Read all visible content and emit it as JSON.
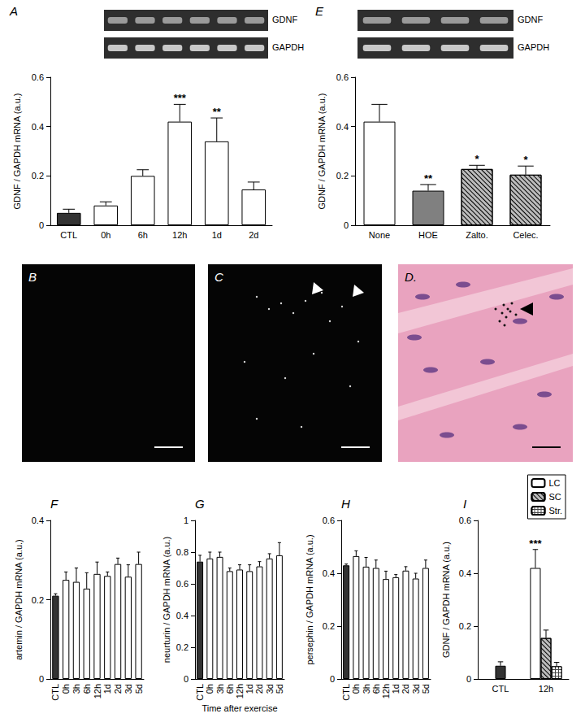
{
  "chart_data": [
    {
      "type": "bar",
      "title": "A",
      "categories": [
        "CTL",
        "0h",
        "6h",
        "12h",
        "1d",
        "2d"
      ],
      "values": [
        0.05,
        0.08,
        0.2,
        0.42,
        0.34,
        0.145
      ],
      "errors": [
        0.015,
        0.015,
        0.025,
        0.07,
        0.095,
        0.03
      ],
      "colors": [
        "#333333",
        "#ffffff",
        "#ffffff",
        "#ffffff",
        "#ffffff",
        "#ffffff"
      ],
      "ylabel": "GDNF / GAPDH mRNA (a.u.)",
      "ylim": [
        0,
        0.6
      ],
      "yticks": [
        0,
        0.2,
        0.4,
        0.6
      ],
      "annotations": [
        {
          "category": "12h",
          "text": "***"
        },
        {
          "category": "1d",
          "text": "**"
        }
      ],
      "gel_labels": [
        "GDNF",
        "GAPDH"
      ],
      "grid": false
    },
    {
      "type": "bar",
      "title": "E",
      "categories": [
        "None",
        "HOE",
        "Zalto.",
        "Celec."
      ],
      "values": [
        0.42,
        0.14,
        0.228,
        0.205
      ],
      "errors": [
        0.07,
        0.025,
        0.015,
        0.035
      ],
      "colors": [
        "#ffffff",
        "#808080",
        "#bbbbbb",
        "#bbbbbb"
      ],
      "ylabel": "GDNF / GAPDH mRNA (a.u.)",
      "ylim": [
        0,
        0.6
      ],
      "yticks": [
        0,
        0.2,
        0.4,
        0.6
      ],
      "annotations": [
        {
          "category": "HOE",
          "text": "**"
        },
        {
          "category": "Zalto.",
          "text": "*"
        },
        {
          "category": "Celec.",
          "text": "*"
        }
      ],
      "gel_labels": [
        "GDNF",
        "GAPDH"
      ],
      "grid": false
    },
    {
      "type": "bar",
      "title": "F",
      "categories": [
        "CTL",
        "0h",
        "3h",
        "6h",
        "12h",
        "1d",
        "2d",
        "3d",
        "5d"
      ],
      "values": [
        0.21,
        0.25,
        0.245,
        0.228,
        0.265,
        0.26,
        0.29,
        0.258,
        0.29
      ],
      "errors": [
        0.005,
        0.02,
        0.035,
        0.04,
        0.03,
        0.01,
        0.015,
        0.03,
        0.03
      ],
      "colors": [
        "#333333",
        "#ffffff",
        "#ffffff",
        "#ffffff",
        "#ffffff",
        "#ffffff",
        "#ffffff",
        "#ffffff",
        "#ffffff"
      ],
      "ylabel": "artemin / GAPDH mRNA (a.u.)",
      "ylim": [
        0,
        0.4
      ],
      "yticks": [
        0,
        0.2,
        0.4
      ],
      "grid": false
    },
    {
      "type": "bar",
      "title": "G",
      "categories": [
        "CTL",
        "0h",
        "3h",
        "6h",
        "12h",
        "1d",
        "2d",
        "3d",
        "5d"
      ],
      "values": [
        0.74,
        0.76,
        0.77,
        0.68,
        0.69,
        0.68,
        0.71,
        0.76,
        0.78
      ],
      "errors": [
        0.04,
        0.04,
        0.03,
        0.02,
        0.03,
        0.04,
        0.03,
        0.03,
        0.08
      ],
      "colors": [
        "#333333",
        "#ffffff",
        "#ffffff",
        "#ffffff",
        "#ffffff",
        "#ffffff",
        "#ffffff",
        "#ffffff",
        "#ffffff"
      ],
      "ylabel": "neurturin / GAPDH mRNA (a.u.)",
      "xlabel": "Time after exercise",
      "ylim": [
        0,
        1
      ],
      "yticks": [
        0,
        0.2,
        0.4,
        0.6,
        0.8,
        1
      ],
      "grid": false
    },
    {
      "type": "bar",
      "title": "H",
      "categories": [
        "CTL",
        "0h",
        "3h",
        "6h",
        "12h",
        "1d",
        "2d",
        "3d",
        "5d"
      ],
      "values": [
        0.43,
        0.465,
        0.425,
        0.42,
        0.378,
        0.385,
        0.41,
        0.38,
        0.42
      ],
      "errors": [
        0.005,
        0.02,
        0.035,
        0.03,
        0.03,
        0.01,
        0.015,
        0.02,
        0.03
      ],
      "colors": [
        "#333333",
        "#ffffff",
        "#ffffff",
        "#ffffff",
        "#ffffff",
        "#ffffff",
        "#ffffff",
        "#ffffff",
        "#ffffff"
      ],
      "ylabel": "persephin / GAPDH mRNA (a.u.)",
      "ylim": [
        0,
        0.6
      ],
      "yticks": [
        0,
        0.2,
        0.4,
        0.6
      ],
      "grid": false
    },
    {
      "type": "bar",
      "title": "I",
      "categories": [
        "CTL",
        "12h"
      ],
      "series": [
        {
          "color": "#333333",
          "values": [
            0.05,
            null
          ],
          "errors": [
            0.015,
            null
          ]
        },
        {
          "name": "LC",
          "color": "#ffffff",
          "values": [
            null,
            0.42
          ],
          "errors": [
            null,
            0.07
          ]
        },
        {
          "name": "SC",
          "color": "#bbbbbb",
          "values": [
            null,
            0.155
          ],
          "errors": [
            null,
            0.03
          ]
        },
        {
          "name": "Str.",
          "color": "#444444",
          "values": [
            null,
            0.048
          ],
          "errors": [
            null,
            0.015
          ]
        }
      ],
      "ylabel": "GDNF / GAPDH mRNA (a.u.)",
      "ylim": [
        0,
        0.6
      ],
      "yticks": [
        0,
        0.2,
        0.4,
        0.6
      ],
      "annotations": [
        {
          "category": "12h",
          "series": "LC",
          "text": "***"
        }
      ],
      "legend": "top-right",
      "grid": false
    }
  ],
  "micrographs": [
    {
      "title": "B"
    },
    {
      "title": "C"
    },
    {
      "title": "D."
    }
  ]
}
